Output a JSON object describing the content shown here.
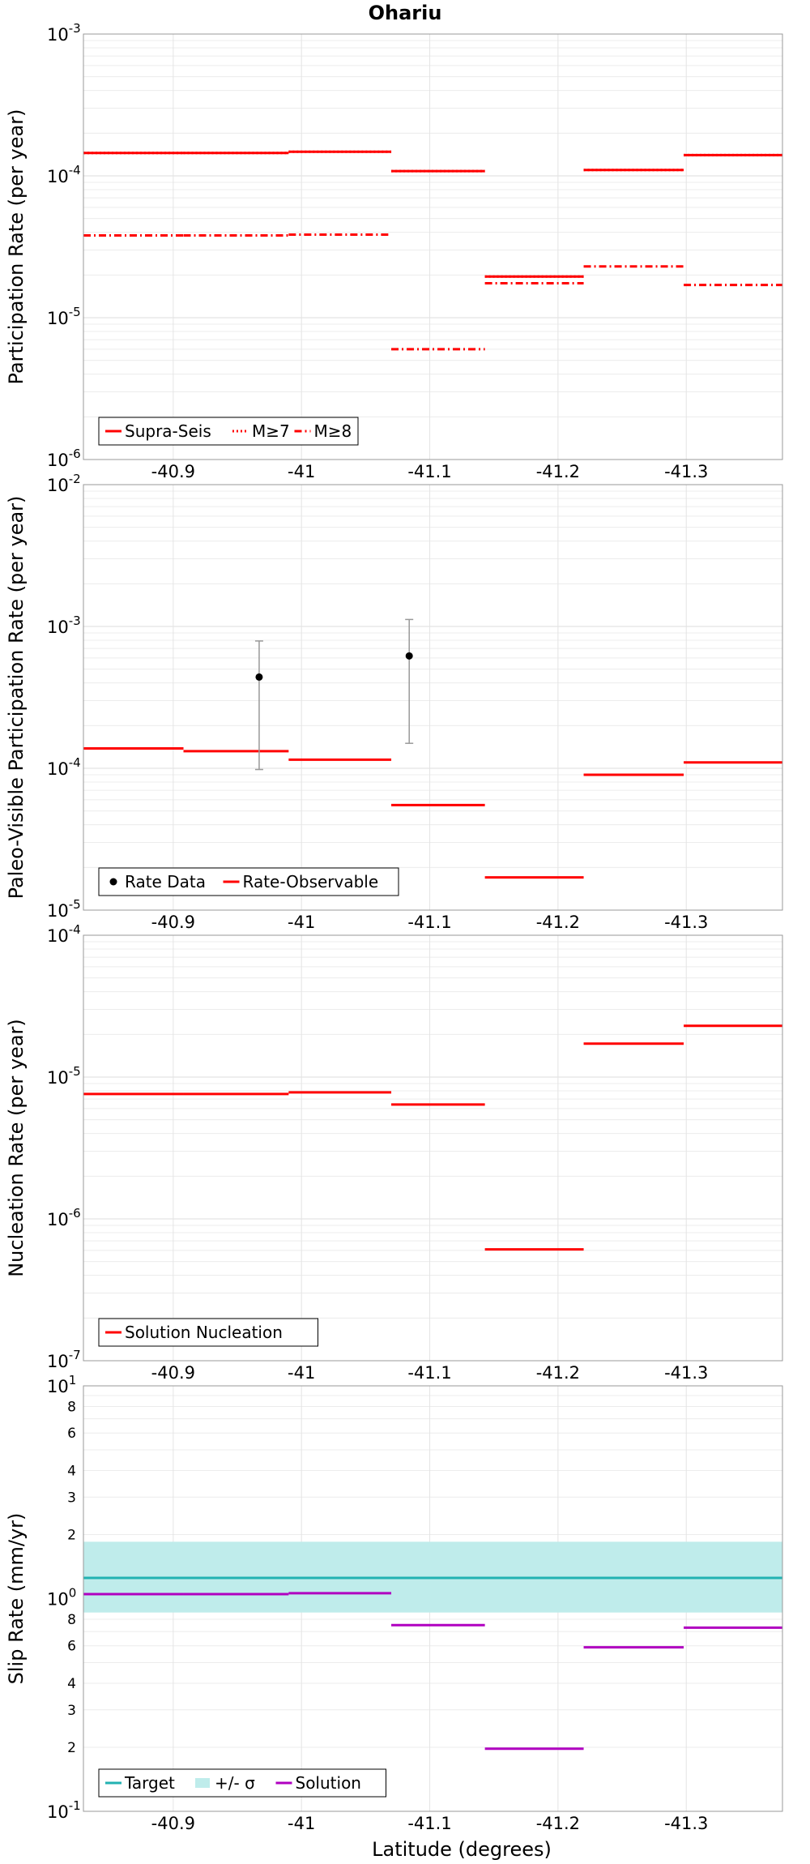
{
  "figure": {
    "title": "Ohariu",
    "xlabel": "Latitude (degrees)"
  },
  "colors": {
    "red": "#ff0000",
    "black": "#000000",
    "grey_errorbar": "#999999",
    "target": "#22b2b2",
    "band": "#bfeceb",
    "solution": "#b000c0"
  },
  "chart_data": [
    {
      "type": "line",
      "name": "participation",
      "ylabel": "Participation Rate (per year)",
      "yscale": "log",
      "ylim": [
        1e-06,
        0.001
      ],
      "xlim": [
        -40.83,
        -41.375
      ],
      "xticks": [
        -40.9,
        -41,
        -41.1,
        -41.2,
        -41.3
      ],
      "xtick_labels": [
        "-40.9",
        "-41",
        "-41.1",
        "-41.2",
        "-41.3"
      ],
      "ytick_labels": [
        {
          "exp": "-6",
          "v": 1e-06
        },
        {
          "exp": "-5",
          "v": 1e-05
        },
        {
          "exp": "-4",
          "v": 0.0001
        },
        {
          "exp": "-3",
          "v": 0.001
        }
      ],
      "legend": {
        "placement": "bottom-left",
        "entries": [
          {
            "label": "Supra-Seis",
            "style": "solid",
            "color": "#ff0000"
          },
          {
            "label": "M≥7",
            "style": "dotted",
            "color": "#ff0000"
          },
          {
            "label": "M≥8",
            "style": "dashdot",
            "color": "#ff0000"
          }
        ]
      },
      "series": [
        {
          "name": "Supra-Seis",
          "style": "solid",
          "color": "#ff0000",
          "segments": [
            {
              "x0": -40.83,
              "x1": -40.908,
              "y": 0.000145
            },
            {
              "x0": -40.908,
              "x1": -40.99,
              "y": 0.000145
            },
            {
              "x0": -40.99,
              "x1": -41.07,
              "y": 0.000148
            },
            {
              "x0": -41.07,
              "x1": -41.143,
              "y": 0.000108
            },
            {
              "x0": -41.143,
              "x1": -41.22,
              "y": 1.95e-05
            },
            {
              "x0": -41.22,
              "x1": -41.298,
              "y": 0.00011
            },
            {
              "x0": -41.298,
              "x1": -41.375,
              "y": 0.00014
            }
          ]
        },
        {
          "name": "M≥7",
          "style": "dotted",
          "color": "#ff0000",
          "segments": [
            {
              "x0": -40.83,
              "x1": -40.908,
              "y": 0.000145
            },
            {
              "x0": -40.908,
              "x1": -40.99,
              "y": 0.000145
            },
            {
              "x0": -40.99,
              "x1": -41.07,
              "y": 0.000148
            },
            {
              "x0": -41.07,
              "x1": -41.143,
              "y": 0.000108
            },
            {
              "x0": -41.143,
              "x1": -41.22,
              "y": 1.95e-05
            },
            {
              "x0": -41.22,
              "x1": -41.298,
              "y": 0.00011
            },
            {
              "x0": -41.298,
              "x1": -41.375,
              "y": 0.00014
            }
          ]
        },
        {
          "name": "M≥8",
          "style": "dashdot",
          "color": "#ff0000",
          "segments": [
            {
              "x0": -40.83,
              "x1": -40.908,
              "y": 3.8e-05
            },
            {
              "x0": -40.908,
              "x1": -40.99,
              "y": 3.8e-05
            },
            {
              "x0": -40.99,
              "x1": -41.07,
              "y": 3.85e-05
            },
            {
              "x0": -41.07,
              "x1": -41.143,
              "y": 6e-06
            },
            {
              "x0": -41.143,
              "x1": -41.22,
              "y": 1.75e-05
            },
            {
              "x0": -41.22,
              "x1": -41.298,
              "y": 2.3e-05
            },
            {
              "x0": -41.298,
              "x1": -41.375,
              "y": 1.7e-05
            }
          ]
        }
      ],
      "points": []
    },
    {
      "type": "line",
      "name": "paleo",
      "ylabel": "Paleo-Visible Participation Rate (per year)",
      "yscale": "log",
      "ylim": [
        1e-05,
        0.01
      ],
      "xlim": [
        -40.83,
        -41.375
      ],
      "xticks": [
        -40.9,
        -41,
        -41.1,
        -41.2,
        -41.3
      ],
      "xtick_labels": [
        "-40.9",
        "-41",
        "-41.1",
        "-41.2",
        "-41.3"
      ],
      "ytick_labels": [
        {
          "exp": "-5",
          "v": 1e-05
        },
        {
          "exp": "-4",
          "v": 0.0001
        },
        {
          "exp": "-3",
          "v": 0.001
        },
        {
          "exp": "-2",
          "v": 0.01
        }
      ],
      "legend": {
        "placement": "bottom-left",
        "entries": [
          {
            "label": "Rate Data",
            "style": "point",
            "color": "#000000"
          },
          {
            "label": "Rate-Observable",
            "style": "solid",
            "color": "#ff0000"
          }
        ]
      },
      "series": [
        {
          "name": "Rate-Observable",
          "style": "solid",
          "color": "#ff0000",
          "segments": [
            {
              "x0": -40.83,
              "x1": -40.908,
              "y": 0.000138
            },
            {
              "x0": -40.908,
              "x1": -40.99,
              "y": 0.000132
            },
            {
              "x0": -40.99,
              "x1": -41.07,
              "y": 0.000115
            },
            {
              "x0": -41.07,
              "x1": -41.143,
              "y": 5.5e-05
            },
            {
              "x0": -41.143,
              "x1": -41.22,
              "y": 1.7e-05
            },
            {
              "x0": -41.22,
              "x1": -41.298,
              "y": 9e-05
            },
            {
              "x0": -41.298,
              "x1": -41.375,
              "y": 0.00011
            }
          ]
        }
      ],
      "points": [
        {
          "name": "Rate Data",
          "x": -40.967,
          "y": 0.00044,
          "ylo": 9.8e-05,
          "yhi": 0.00079
        },
        {
          "name": "Rate Data",
          "x": -41.084,
          "y": 0.00062,
          "ylo": 0.00015,
          "yhi": 0.00112
        }
      ]
    },
    {
      "type": "line",
      "name": "nucleation",
      "ylabel": "Nucleation Rate (per year)",
      "yscale": "log",
      "ylim": [
        1e-07,
        0.0001
      ],
      "xlim": [
        -40.83,
        -41.375
      ],
      "xticks": [
        -40.9,
        -41,
        -41.1,
        -41.2,
        -41.3
      ],
      "xtick_labels": [
        "-40.9",
        "-41",
        "-41.1",
        "-41.2",
        "-41.3"
      ],
      "ytick_labels": [
        {
          "exp": "-7",
          "v": 1e-07
        },
        {
          "exp": "-6",
          "v": 1e-06
        },
        {
          "exp": "-5",
          "v": 1e-05
        },
        {
          "exp": "-4",
          "v": 0.0001
        }
      ],
      "legend": {
        "placement": "bottom-left",
        "entries": [
          {
            "label": "Solution Nucleation",
            "style": "solid",
            "color": "#ff0000"
          }
        ]
      },
      "series": [
        {
          "name": "Solution Nucleation",
          "style": "solid",
          "color": "#ff0000",
          "segments": [
            {
              "x0": -40.83,
              "x1": -40.908,
              "y": 7.6e-06
            },
            {
              "x0": -40.908,
              "x1": -40.99,
              "y": 7.6e-06
            },
            {
              "x0": -40.99,
              "x1": -41.07,
              "y": 7.8e-06
            },
            {
              "x0": -41.07,
              "x1": -41.143,
              "y": 6.4e-06
            },
            {
              "x0": -41.143,
              "x1": -41.22,
              "y": 6.1e-07
            },
            {
              "x0": -41.22,
              "x1": -41.298,
              "y": 1.72e-05
            },
            {
              "x0": -41.298,
              "x1": -41.375,
              "y": 2.3e-05
            }
          ]
        }
      ],
      "points": []
    },
    {
      "type": "line",
      "name": "slip",
      "ylabel": "Slip Rate (mm/yr)",
      "yscale": "log",
      "ylim": [
        0.1,
        10
      ],
      "xlim": [
        -40.83,
        -41.375
      ],
      "xticks": [
        -40.9,
        -41,
        -41.1,
        -41.2,
        -41.3
      ],
      "xtick_labels": [
        "-40.9",
        "-41",
        "-41.1",
        "-41.2",
        "-41.3"
      ],
      "ytick_labels": [
        {
          "exp": "-1",
          "v": 0.1
        },
        {
          "exp": "0",
          "v": 1
        },
        {
          "exp": "1",
          "v": 10
        }
      ],
      "minor_tick_labels": [
        {
          "text": "2",
          "v": 0.2
        },
        {
          "text": "3",
          "v": 0.3
        },
        {
          "text": "4",
          "v": 0.4
        },
        {
          "text": "6",
          "v": 0.6
        },
        {
          "text": "8",
          "v": 0.8
        },
        {
          "text": "2",
          "v": 2
        },
        {
          "text": "3",
          "v": 3
        },
        {
          "text": "4",
          "v": 4
        },
        {
          "text": "6",
          "v": 6
        },
        {
          "text": "8",
          "v": 8
        }
      ],
      "legend": {
        "placement": "bottom-left",
        "entries": [
          {
            "label": "Target",
            "style": "solid",
            "color": "#22b2b2"
          },
          {
            "label": "+/- σ",
            "style": "band",
            "color": "#bfeceb"
          },
          {
            "label": "Solution",
            "style": "solid",
            "color": "#b000c0"
          }
        ]
      },
      "band": {
        "name": "+/- σ",
        "ylo": 0.86,
        "yhi": 1.85
      },
      "target": {
        "name": "Target",
        "y": 1.25
      },
      "series": [
        {
          "name": "Solution",
          "style": "solid",
          "color": "#b000c0",
          "segments": [
            {
              "x0": -40.83,
              "x1": -40.908,
              "y": 1.05
            },
            {
              "x0": -40.908,
              "x1": -40.99,
              "y": 1.05
            },
            {
              "x0": -40.99,
              "x1": -41.07,
              "y": 1.06
            },
            {
              "x0": -41.07,
              "x1": -41.143,
              "y": 0.75
            },
            {
              "x0": -41.143,
              "x1": -41.22,
              "y": 0.197
            },
            {
              "x0": -41.22,
              "x1": -41.298,
              "y": 0.59
            },
            {
              "x0": -41.298,
              "x1": -41.375,
              "y": 0.73
            }
          ]
        }
      ],
      "points": []
    }
  ]
}
